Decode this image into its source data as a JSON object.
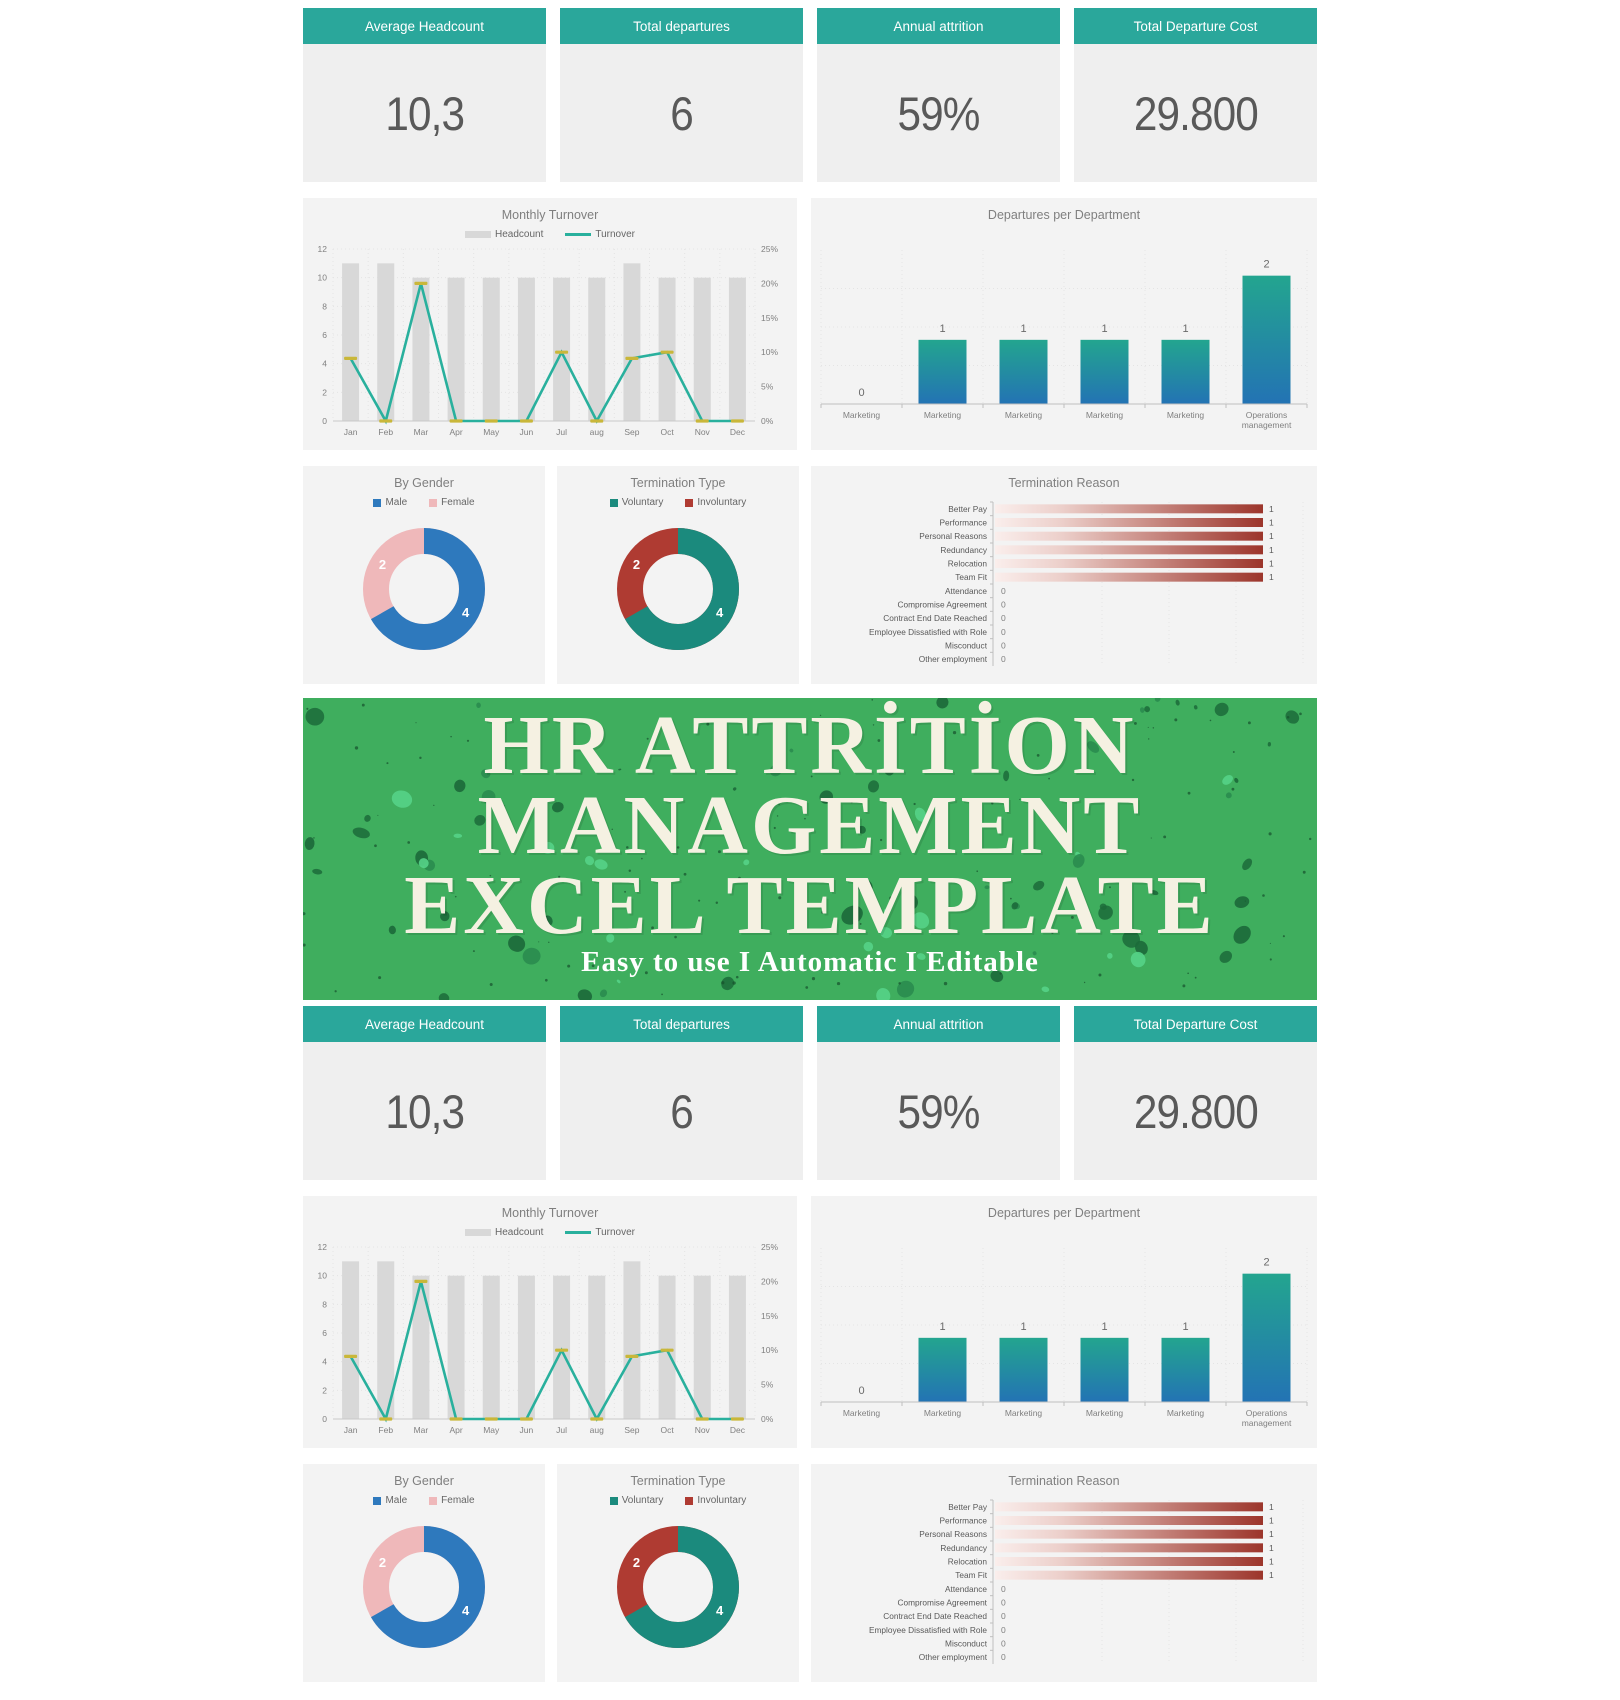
{
  "banner": {
    "title_lines": [
      "HR ATTRİTİON",
      "MANAGEMENT",
      "EXCEL TEMPLATE"
    ],
    "subtitle": "Easy to use I Automatic I Editable",
    "bg_color": "#3fae5e",
    "text_color": "#f5f1e2"
  },
  "kpi_cards": [
    {
      "label": "Average Headcount",
      "value": "10,3"
    },
    {
      "label": "Total departures",
      "value": "6"
    },
    {
      "label": "Annual attrition",
      "value": "59%"
    },
    {
      "label": "Total Departure Cost",
      "value": "29.800"
    }
  ],
  "colors": {
    "kpi_header_teal": "#2aa79b",
    "kpi_body_gray": "#efefef",
    "panel_gray": "#f3f3f3",
    "headcount_bar_gray": "#d8d8d8",
    "turnover_line_teal": "#29b09d",
    "turnover_marker_olive": "#c9b73a",
    "dept_bar_gradient_top": "#23a58f",
    "dept_bar_gradient_bottom": "#2373b4",
    "male_blue": "#2e79bd",
    "female_pink": "#efb8ba",
    "voluntary_teal": "#1b8a7d",
    "involuntary_red": "#af3b32",
    "reason_bar_dark_red": "#9c352b",
    "banner_green": "#3fae5e"
  },
  "chart_data": [
    {
      "id": "monthly_turnover",
      "type": "bar+line combo",
      "title": "Monthly Turnover",
      "categories": [
        "Jan",
        "Feb",
        "Mar",
        "Apr",
        "May",
        "Jun",
        "Jul",
        "aug",
        "Sep",
        "Oct",
        "Nov",
        "Dec"
      ],
      "series": [
        {
          "name": "Headcount",
          "type": "bar",
          "axis": "left",
          "color": "#d8d8d8",
          "values": [
            11,
            11,
            10,
            10,
            10,
            10,
            10,
            10,
            11,
            10,
            10,
            10
          ]
        },
        {
          "name": "Turnover",
          "type": "line",
          "axis": "right",
          "color": "#29b09d",
          "marker_color": "#c9b73a",
          "values_pct": [
            9.1,
            0,
            20,
            0,
            0,
            0,
            10,
            0,
            9.1,
            10,
            0,
            0
          ]
        }
      ],
      "left_axis": {
        "min": 0,
        "max": 12,
        "ticks": [
          0,
          2,
          4,
          6,
          8,
          10,
          12
        ]
      },
      "right_axis": {
        "min_pct": 0,
        "max_pct": 25,
        "ticks": [
          "0%",
          "5%",
          "10%",
          "15%",
          "20%",
          "25%"
        ]
      },
      "grid": true,
      "legend_position": "top"
    },
    {
      "id": "departures_per_department",
      "type": "bar",
      "title": "Departures per Department",
      "categories": [
        "Marketing",
        "Marketing",
        "Marketing",
        "Marketing",
        "Marketing",
        "Operations management"
      ],
      "values": [
        0,
        1,
        1,
        1,
        1,
        2
      ],
      "data_labels": [
        "0",
        "1",
        "1",
        "1",
        "1",
        "2"
      ],
      "ylim": [
        0,
        2.4
      ],
      "grid": true,
      "bar_gradient": [
        "#23a58f",
        "#2373b4"
      ]
    },
    {
      "id": "by_gender",
      "type": "pie",
      "title": "By Gender",
      "legend": [
        "Male",
        "Female"
      ],
      "slices": [
        {
          "label": "Male",
          "value": 4,
          "color": "#2e79bd"
        },
        {
          "label": "Female",
          "value": 2,
          "color": "#efb8ba"
        }
      ],
      "donut": true,
      "start_angle_deg": 0,
      "legend_position": "top"
    },
    {
      "id": "termination_type",
      "type": "pie",
      "title": "Termination Type",
      "legend": [
        "Voluntary",
        "Involuntary"
      ],
      "slices": [
        {
          "label": "Voluntary",
          "value": 4,
          "color": "#1b8a7d"
        },
        {
          "label": "Involuntary",
          "value": 2,
          "color": "#af3b32"
        }
      ],
      "donut": true,
      "start_angle_deg": 0,
      "legend_position": "top"
    },
    {
      "id": "termination_reason",
      "type": "bar-horizontal",
      "title": "Termination Reason",
      "categories": [
        "Better Pay",
        "Performance",
        "Personal Reasons",
        "Redundancy",
        "Relocation",
        "Team Fit",
        "Attendance",
        "Compromise Agreement",
        "Contract End Date Reached",
        "Employee Dissatisfied with Role",
        "Misconduct",
        "Other employment"
      ],
      "values": [
        1,
        1,
        1,
        1,
        1,
        1,
        0,
        0,
        0,
        0,
        0,
        0
      ],
      "data_labels": [
        "1",
        "1",
        "1",
        "1",
        "1",
        "1",
        "0",
        "0",
        "0",
        "0",
        "0",
        "0"
      ],
      "xlim": [
        0,
        1
      ],
      "grid": true,
      "bar_gradient": [
        "#faeeec",
        "#9c352b"
      ]
    }
  ]
}
